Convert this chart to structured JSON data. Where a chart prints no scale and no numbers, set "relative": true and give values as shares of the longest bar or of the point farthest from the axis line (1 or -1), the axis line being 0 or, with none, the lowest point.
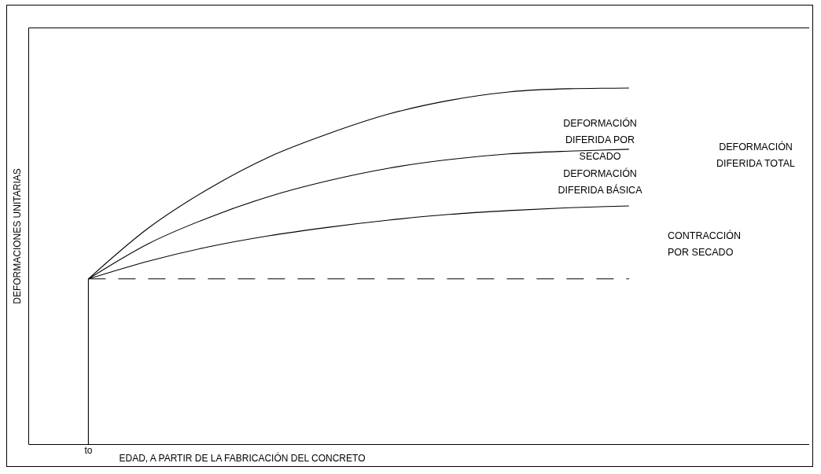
{
  "chart_data": {
    "type": "line",
    "relative": true,
    "xlabel": "EDAD, A PARTIR DE LA FABRICACIÓN DEL CONCRETO",
    "ylabel": "DEFORMACIONES UNITARIAS",
    "categories": [
      null,
      null,
      null,
      null,
      null,
      null,
      null,
      null,
      null,
      null,
      null,
      null,
      null,
      null
    ],
    "series": [
      {
        "color": "#000000",
        "values": [
          null,
          0.464,
          0.607,
          0.717,
          0.806,
          0.872,
          0.927,
          0.965,
          0.989,
          0.998,
          1,
          null,
          null,
          null
        ]
      },
      {
        "color": "#000000",
        "values": [
          null,
          0.464,
          0.563,
          0.636,
          0.695,
          0.74,
          0.775,
          0.799,
          0.815,
          0.823,
          0.828,
          null,
          null,
          null
        ]
      },
      {
        "color": "#000000",
        "values": [
          null,
          0.464,
          0.514,
          0.554,
          0.585,
          0.609,
          0.629,
          0.645,
          0.656,
          0.664,
          0.669,
          null,
          null,
          null
        ]
      },
      {
        "color": "#000000",
        "line_style": "dashed",
        "values": [
          null,
          0.464,
          0.464,
          0.464,
          0.464,
          0.464,
          0.464,
          0.464,
          0.464,
          0.464,
          0.464,
          null,
          null,
          null
        ]
      }
    ],
    "ref_lines": [
      {
        "axis": "x",
        "value": "to",
        "color": "#000000"
      }
    ],
    "annotations": [
      "DEFORMACIÓN\nDIFERIDA POR\nSECADO",
      "DEFORMACIÓN\nDIFERIDA BÁSICA",
      "DEFORMACIÓN\nDIFERIDA TOTAL",
      "CONTRACCIÓN\nPOR SECADO"
    ]
  }
}
